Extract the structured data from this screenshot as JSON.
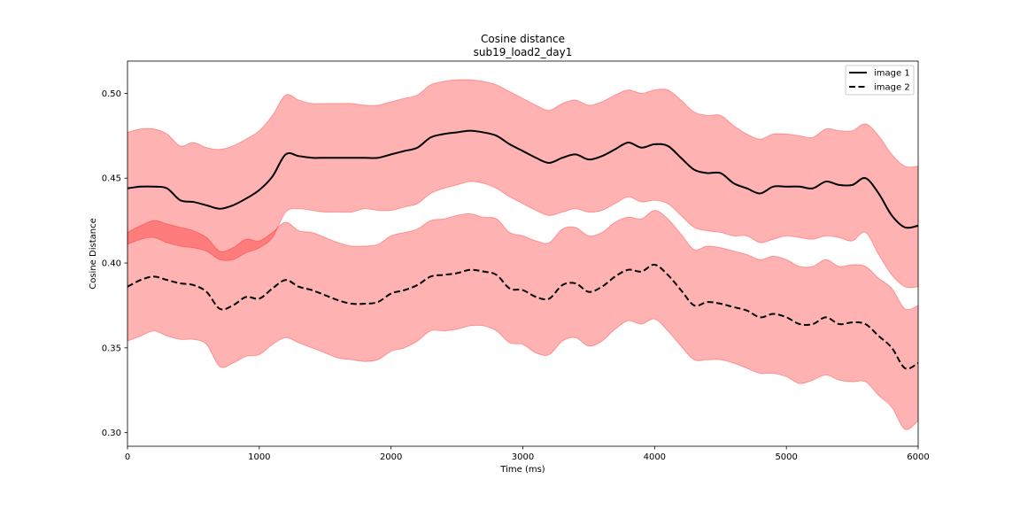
{
  "chart_data": {
    "type": "line",
    "title": "Cosine distance",
    "subtitle": "sub19_load2_day1",
    "xlabel": "Time (ms)",
    "ylabel": "Cosine Distance",
    "xlim": [
      0,
      6000
    ],
    "ylim": [
      0.292,
      0.519
    ],
    "xticks": [
      0,
      1000,
      2000,
      3000,
      4000,
      5000,
      6000
    ],
    "yticks": [
      0.3,
      0.35,
      0.4,
      0.45,
      0.5
    ],
    "xtick_labels": [
      "0",
      "1000",
      "2000",
      "3000",
      "4000",
      "5000",
      "6000"
    ],
    "ytick_labels": [
      "0.30",
      "0.35",
      "0.40",
      "0.45",
      "0.50"
    ],
    "grid": false,
    "legend_position": "top-right",
    "band_color": "#ff0000",
    "band_opacity": 0.3,
    "x": [
      0,
      100,
      200,
      300,
      400,
      500,
      600,
      700,
      800,
      900,
      1000,
      1100,
      1200,
      1300,
      1400,
      1500,
      1600,
      1700,
      1800,
      1900,
      2000,
      2100,
      2200,
      2300,
      2400,
      2500,
      2600,
      2700,
      2800,
      2900,
      3000,
      3100,
      3200,
      3300,
      3400,
      3500,
      3600,
      3700,
      3800,
      3900,
      4000,
      4100,
      4200,
      4300,
      4400,
      4500,
      4600,
      4700,
      4800,
      4900,
      5000,
      5100,
      5200,
      5300,
      5400,
      5500,
      5600,
      5700,
      5800,
      5900,
      6000
    ],
    "series": [
      {
        "name": "image 1",
        "color": "#000000",
        "linestyle": "solid",
        "values": [
          0.444,
          0.445,
          0.445,
          0.444,
          0.437,
          0.436,
          0.434,
          0.432,
          0.434,
          0.438,
          0.443,
          0.451,
          0.464,
          0.463,
          0.462,
          0.462,
          0.462,
          0.462,
          0.462,
          0.462,
          0.464,
          0.466,
          0.468,
          0.474,
          0.476,
          0.477,
          0.478,
          0.477,
          0.475,
          0.47,
          0.466,
          0.462,
          0.459,
          0.462,
          0.464,
          0.461,
          0.463,
          0.467,
          0.471,
          0.468,
          0.47,
          0.469,
          0.462,
          0.455,
          0.453,
          0.453,
          0.447,
          0.444,
          0.441,
          0.445,
          0.445,
          0.445,
          0.444,
          0.448,
          0.446,
          0.446,
          0.45,
          0.441,
          0.428,
          0.421,
          0.422
        ],
        "lower": [
          0.411,
          0.414,
          0.415,
          0.412,
          0.41,
          0.409,
          0.407,
          0.402,
          0.402,
          0.406,
          0.409,
          0.415,
          0.43,
          0.432,
          0.431,
          0.43,
          0.43,
          0.43,
          0.432,
          0.431,
          0.431,
          0.433,
          0.435,
          0.441,
          0.444,
          0.446,
          0.448,
          0.447,
          0.444,
          0.439,
          0.435,
          0.431,
          0.428,
          0.43,
          0.432,
          0.43,
          0.431,
          0.435,
          0.439,
          0.436,
          0.437,
          0.435,
          0.428,
          0.421,
          0.419,
          0.418,
          0.416,
          0.416,
          0.412,
          0.414,
          0.416,
          0.415,
          0.414,
          0.416,
          0.415,
          0.413,
          0.418,
          0.405,
          0.393,
          0.386,
          0.386
        ],
        "upper": [
          0.477,
          0.479,
          0.479,
          0.476,
          0.469,
          0.471,
          0.468,
          0.467,
          0.469,
          0.473,
          0.478,
          0.487,
          0.499,
          0.496,
          0.494,
          0.494,
          0.494,
          0.494,
          0.493,
          0.493,
          0.495,
          0.497,
          0.499,
          0.505,
          0.507,
          0.508,
          0.508,
          0.507,
          0.505,
          0.501,
          0.497,
          0.493,
          0.49,
          0.494,
          0.496,
          0.493,
          0.495,
          0.499,
          0.502,
          0.5,
          0.502,
          0.502,
          0.496,
          0.489,
          0.487,
          0.487,
          0.481,
          0.476,
          0.473,
          0.476,
          0.476,
          0.475,
          0.474,
          0.479,
          0.478,
          0.478,
          0.482,
          0.475,
          0.464,
          0.457,
          0.457
        ]
      },
      {
        "name": "image 2",
        "color": "#000000",
        "linestyle": "dashed",
        "values": [
          0.386,
          0.39,
          0.392,
          0.39,
          0.388,
          0.387,
          0.383,
          0.373,
          0.375,
          0.38,
          0.379,
          0.385,
          0.39,
          0.386,
          0.384,
          0.381,
          0.378,
          0.376,
          0.376,
          0.377,
          0.382,
          0.384,
          0.387,
          0.392,
          0.393,
          0.394,
          0.396,
          0.395,
          0.393,
          0.385,
          0.384,
          0.38,
          0.379,
          0.387,
          0.388,
          0.383,
          0.386,
          0.392,
          0.396,
          0.395,
          0.399,
          0.393,
          0.384,
          0.375,
          0.377,
          0.376,
          0.374,
          0.372,
          0.368,
          0.37,
          0.368,
          0.364,
          0.364,
          0.368,
          0.364,
          0.365,
          0.364,
          0.357,
          0.35,
          0.338,
          0.341
        ],
        "lower": [
          0.354,
          0.357,
          0.36,
          0.357,
          0.355,
          0.355,
          0.352,
          0.339,
          0.341,
          0.345,
          0.346,
          0.352,
          0.356,
          0.353,
          0.35,
          0.347,
          0.344,
          0.343,
          0.342,
          0.343,
          0.348,
          0.35,
          0.354,
          0.36,
          0.36,
          0.361,
          0.363,
          0.363,
          0.36,
          0.353,
          0.352,
          0.347,
          0.346,
          0.354,
          0.356,
          0.351,
          0.354,
          0.361,
          0.366,
          0.364,
          0.367,
          0.36,
          0.351,
          0.343,
          0.343,
          0.343,
          0.341,
          0.338,
          0.335,
          0.335,
          0.333,
          0.329,
          0.331,
          0.334,
          0.331,
          0.33,
          0.33,
          0.322,
          0.315,
          0.302,
          0.307
        ],
        "upper": [
          0.418,
          0.422,
          0.425,
          0.423,
          0.421,
          0.419,
          0.415,
          0.407,
          0.409,
          0.414,
          0.413,
          0.418,
          0.424,
          0.419,
          0.418,
          0.415,
          0.412,
          0.41,
          0.41,
          0.411,
          0.416,
          0.418,
          0.42,
          0.425,
          0.426,
          0.428,
          0.429,
          0.427,
          0.426,
          0.418,
          0.416,
          0.413,
          0.412,
          0.42,
          0.421,
          0.416,
          0.418,
          0.424,
          0.427,
          0.426,
          0.431,
          0.426,
          0.417,
          0.408,
          0.41,
          0.409,
          0.407,
          0.405,
          0.402,
          0.404,
          0.402,
          0.398,
          0.398,
          0.402,
          0.398,
          0.399,
          0.398,
          0.391,
          0.385,
          0.373,
          0.375
        ]
      }
    ]
  }
}
